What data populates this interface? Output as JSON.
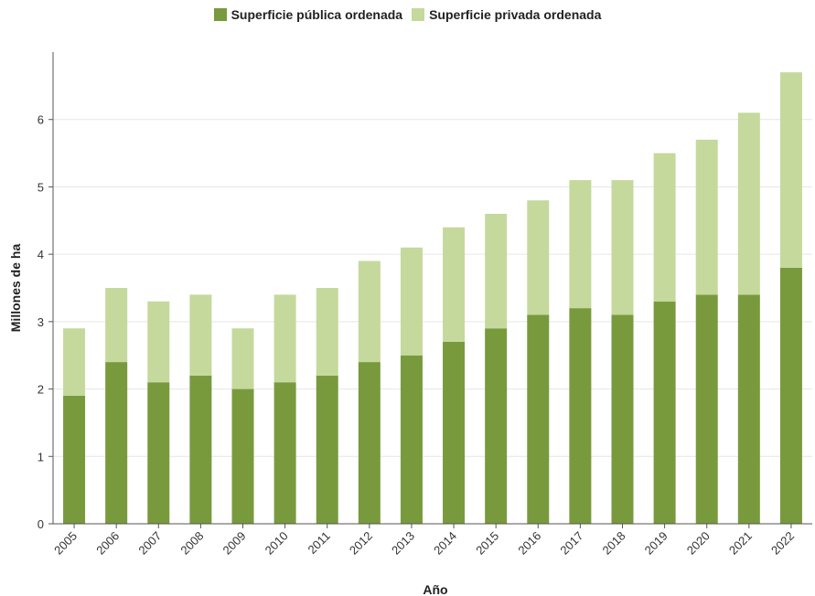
{
  "chart_data": {
    "type": "bar",
    "stacked": true,
    "categories": [
      "2005",
      "2006",
      "2007",
      "2008",
      "2009",
      "2010",
      "2011",
      "2012",
      "2013",
      "2014",
      "2015",
      "2016",
      "2017",
      "2018",
      "2019",
      "2020",
      "2021",
      "2022"
    ],
    "series": [
      {
        "name": "Superficie pública ordenada",
        "color": "#789a3d",
        "values": [
          1.9,
          2.4,
          2.1,
          2.2,
          2.0,
          2.1,
          2.2,
          2.4,
          2.5,
          2.7,
          2.9,
          3.1,
          3.2,
          3.1,
          3.3,
          3.4,
          3.4,
          3.8
        ]
      },
      {
        "name": "Superficie privada ordenada",
        "color": "#c5d99c",
        "values": [
          1.0,
          1.1,
          1.2,
          1.2,
          0.9,
          1.3,
          1.3,
          1.5,
          1.6,
          1.7,
          1.7,
          1.7,
          1.9,
          2.0,
          2.2,
          2.3,
          2.7,
          2.9
        ]
      }
    ],
    "xlabel": "Año",
    "ylabel": "Millones de ha",
    "ylim": [
      0,
      7
    ],
    "yticks": [
      0,
      1,
      2,
      3,
      4,
      5,
      6
    ],
    "grid": true,
    "legend_position": "top-center"
  }
}
